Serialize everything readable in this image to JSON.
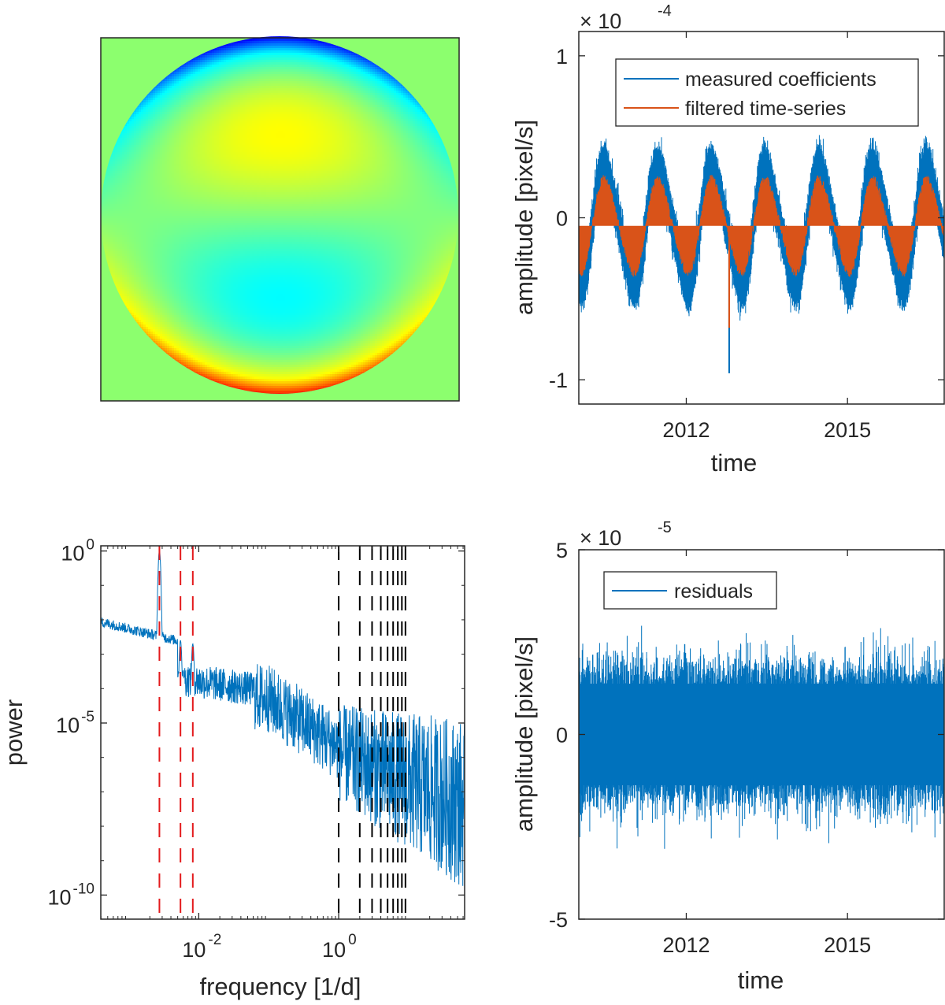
{
  "figure": {
    "colormap_panel": {
      "name": "zernike-coefficient-map",
      "background": "#8cff6e",
      "colors": [
        "#00008f",
        "#0000ff",
        "#00ffff",
        "#80ff80",
        "#ffff00",
        "#ff0000",
        "#800000"
      ]
    }
  },
  "chart_data": [
    {
      "id": "top-right",
      "type": "line",
      "xlabel": "time",
      "ylabel": "amplitude [pixel/s]",
      "multiplier": {
        "base": "× 10",
        "exponent": "-4"
      },
      "xlim": [
        2010.0,
        2016.8
      ],
      "ylim": [
        -1.15,
        1.15
      ],
      "xticks": [
        {
          "value": 2012,
          "label": "2012"
        },
        {
          "value": 2015,
          "label": "2015"
        }
      ],
      "yticks": [
        {
          "value": 1,
          "label": "1"
        },
        {
          "value": 0,
          "label": "0"
        },
        {
          "value": -1,
          "label": "-1"
        }
      ],
      "legend": {
        "position": "top-right",
        "entries": [
          "measured coefficients",
          "filtered time-series"
        ]
      },
      "series": [
        {
          "name": "measured coefficients",
          "color": "#0072bd",
          "amplitude": 0.35,
          "offset": -0.05,
          "period_years": 1.0,
          "noise": 0.1,
          "spike_time": 2012.8,
          "spike_value": -0.96
        },
        {
          "name": "filtered time-series",
          "color": "#d95319",
          "amplitude": 0.28,
          "offset": -0.05,
          "period_years": 1.0,
          "spike_time": 2012.8,
          "spike_value": -0.68
        }
      ]
    },
    {
      "id": "bottom-left",
      "type": "line",
      "xlabel": "frequency [1/d]",
      "ylabel": "power",
      "xscale": "log",
      "yscale": "log",
      "xlim_log10": [
        -3.4,
        1.8
      ],
      "ylim_log10": [
        -10.7,
        0.15
      ],
      "xticks": [
        {
          "log10": -2,
          "base": "10",
          "exp": "-2"
        },
        {
          "log10": 0,
          "base": "10",
          "exp": "0"
        }
      ],
      "yticks": [
        {
          "log10": 0,
          "base": "10",
          "exp": "0"
        },
        {
          "log10": -5,
          "base": "10",
          "exp": "-5"
        },
        {
          "log10": -10,
          "base": "10",
          "exp": "-10"
        }
      ],
      "red_dashed_lines_freq": [
        0.00274,
        0.00548,
        0.00822
      ],
      "black_dashed_lines_freq": [
        1,
        2,
        3,
        4,
        5,
        6,
        7,
        8,
        9
      ],
      "series": [
        {
          "name": "power spectrum",
          "color": "#0072bd",
          "peaks": [
            {
              "freq": 0.00274,
              "log10_power": 0.0
            },
            {
              "freq": 0.00548,
              "log10_power": -2.6
            },
            {
              "freq": 0.00822,
              "log10_power": -2.7
            }
          ],
          "start_log10_power": -2.0,
          "plateau_log10_power": -3.5,
          "tail_log10_power": -6.5
        }
      ]
    },
    {
      "id": "bottom-right",
      "type": "line",
      "xlabel": "time",
      "ylabel": "amplitude [pixel/s]",
      "multiplier": {
        "base": "× 10",
        "exponent": "-5"
      },
      "xlim": [
        2010.0,
        2016.8
      ],
      "ylim": [
        -5,
        5
      ],
      "xticks": [
        {
          "value": 2012,
          "label": "2012"
        },
        {
          "value": 2015,
          "label": "2015"
        }
      ],
      "yticks": [
        {
          "value": 5,
          "label": "5"
        },
        {
          "value": 0,
          "label": "0"
        },
        {
          "value": -5,
          "label": "-5"
        }
      ],
      "legend": {
        "position": "top-left",
        "entries": [
          "residuals"
        ]
      },
      "series": [
        {
          "name": "residuals",
          "color": "#0072bd",
          "noise_band": 2.5,
          "max_excursion": 3.4
        }
      ]
    }
  ]
}
